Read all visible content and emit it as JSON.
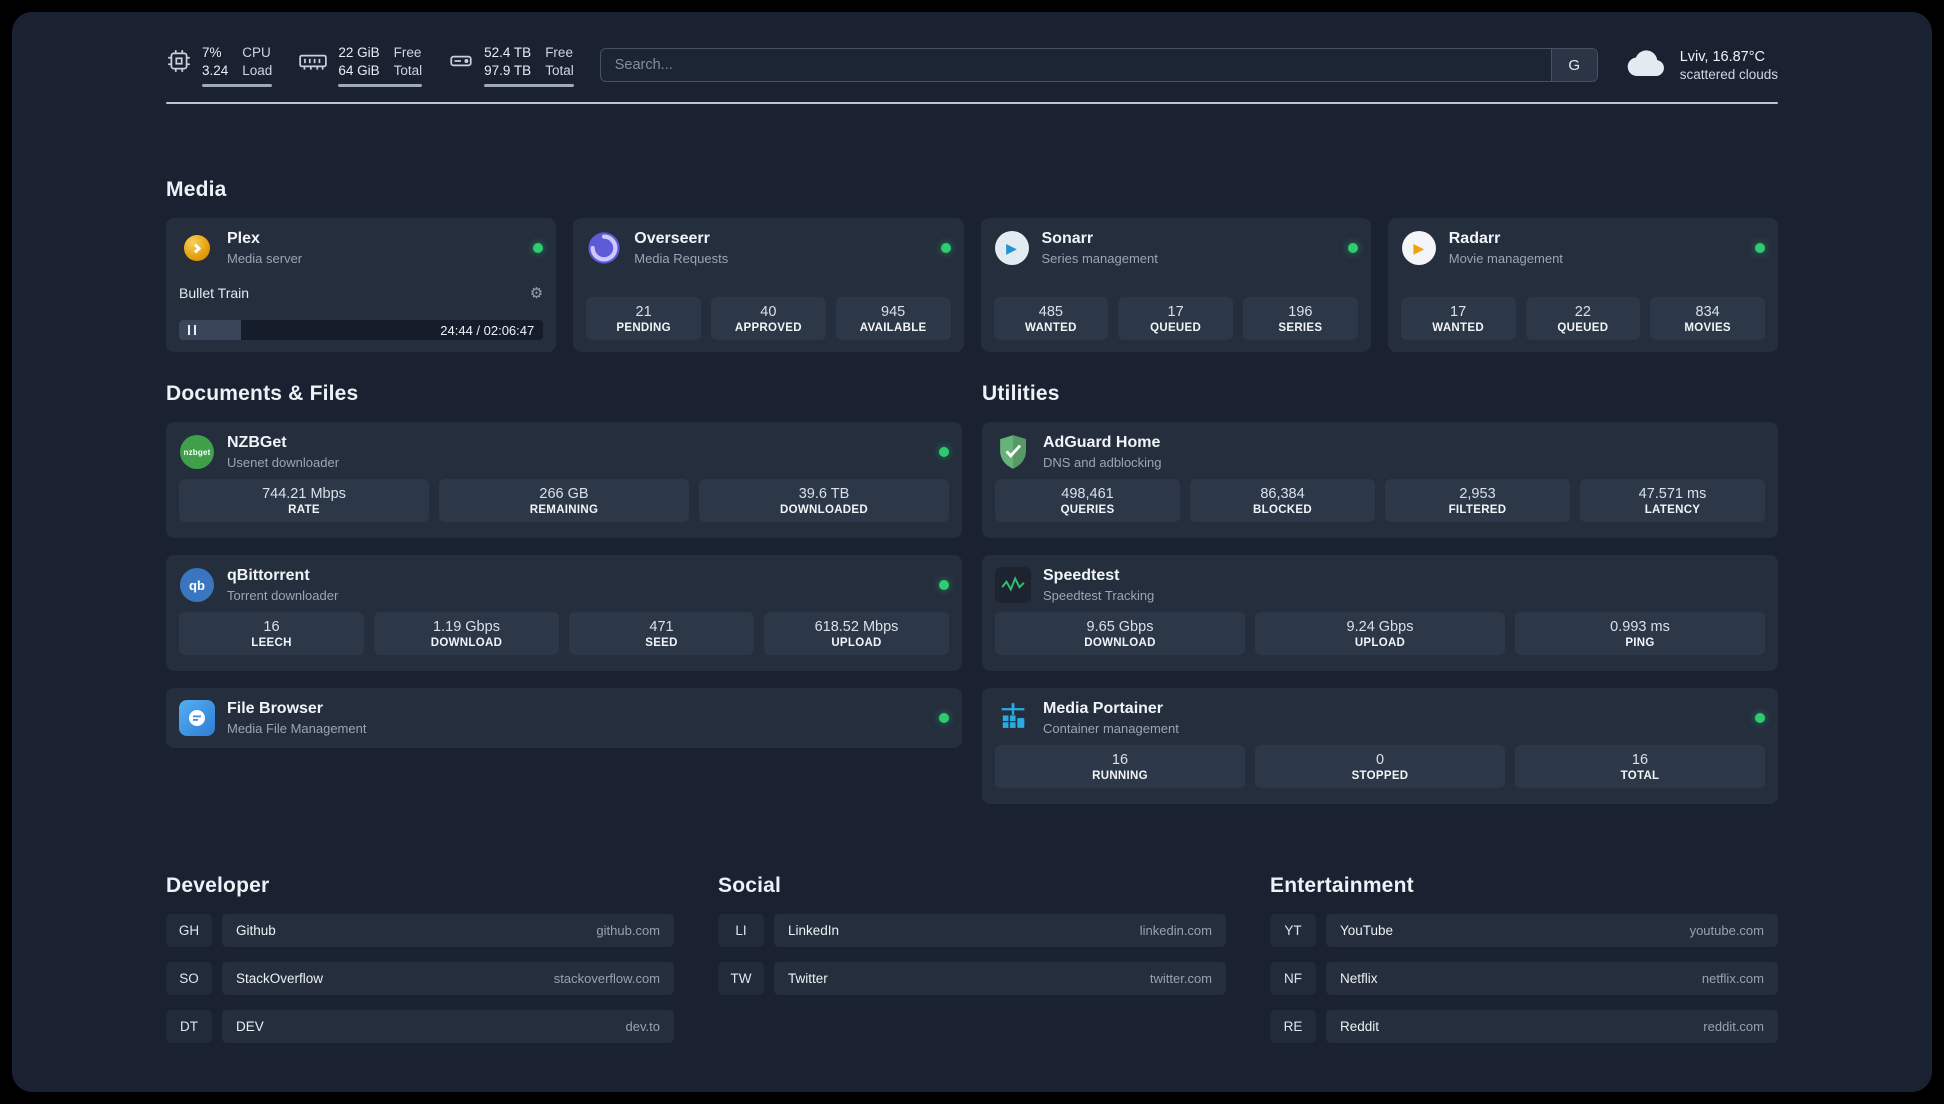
{
  "topbar": {
    "cpu": {
      "percent": "7%",
      "load": "3.24",
      "label_top": "CPU",
      "label_bottom": "Load"
    },
    "ram": {
      "free": "22 GiB",
      "total": "64 GiB",
      "label_top": "Free",
      "label_bottom": "Total"
    },
    "disk": {
      "free": "52.4 TB",
      "total": "97.9 TB",
      "label_top": "Free",
      "label_bottom": "Total"
    },
    "search": {
      "placeholder": "Search...",
      "provider_label": "G"
    },
    "weather": {
      "location": "Lviv, 16.87°C",
      "condition": "scattered clouds"
    }
  },
  "icons": {
    "gear": "⚙",
    "play": "▶",
    "qb_label": "qb",
    "nzbget_label": "nzbget"
  },
  "media": {
    "title": "Media",
    "plex": {
      "name": "Plex",
      "desc": "Media server",
      "now_playing": "Bullet Train",
      "time": "24:44 / 02:06:47",
      "progress_width": "17%"
    },
    "overseerr": {
      "name": "Overseerr",
      "desc": "Media Requests",
      "stats": [
        {
          "value": "21",
          "label": "PENDING"
        },
        {
          "value": "40",
          "label": "APPROVED"
        },
        {
          "value": "945",
          "label": "AVAILABLE"
        }
      ]
    },
    "sonarr": {
      "name": "Sonarr",
      "desc": "Series management",
      "stats": [
        {
          "value": "485",
          "label": "WANTED"
        },
        {
          "value": "17",
          "label": "QUEUED"
        },
        {
          "value": "196",
          "label": "SERIES"
        }
      ]
    },
    "radarr": {
      "name": "Radarr",
      "desc": "Movie management",
      "stats": [
        {
          "value": "17",
          "label": "WANTED"
        },
        {
          "value": "22",
          "label": "QUEUED"
        },
        {
          "value": "834",
          "label": "MOVIES"
        }
      ]
    }
  },
  "documents": {
    "title": "Documents & Files",
    "nzbget": {
      "name": "NZBGet",
      "desc": "Usenet downloader",
      "stats": [
        {
          "value": "744.21 Mbps",
          "label": "RATE"
        },
        {
          "value": "266 GB",
          "label": "REMAINING"
        },
        {
          "value": "39.6 TB",
          "label": "DOWNLOADED"
        }
      ]
    },
    "qbittorrent": {
      "name": "qBittorrent",
      "desc": "Torrent downloader",
      "stats": [
        {
          "value": "16",
          "label": "LEECH"
        },
        {
          "value": "1.19 Gbps",
          "label": "DOWNLOAD"
        },
        {
          "value": "471",
          "label": "SEED"
        },
        {
          "value": "618.52 Mbps",
          "label": "UPLOAD"
        }
      ]
    },
    "filebrowser": {
      "name": "File Browser",
      "desc": "Media File Management"
    }
  },
  "utilities": {
    "title": "Utilities",
    "adguard": {
      "name": "AdGuard Home",
      "desc": "DNS and adblocking",
      "stats": [
        {
          "value": "498,461",
          "label": "QUERIES"
        },
        {
          "value": "86,384",
          "label": "BLOCKED"
        },
        {
          "value": "2,953",
          "label": "FILTERED"
        },
        {
          "value": "47.571 ms",
          "label": "LATENCY"
        }
      ]
    },
    "speedtest": {
      "name": "Speedtest",
      "desc": "Speedtest Tracking",
      "stats": [
        {
          "value": "9.65 Gbps",
          "label": "DOWNLOAD"
        },
        {
          "value": "9.24 Gbps",
          "label": "UPLOAD"
        },
        {
          "value": "0.993 ms",
          "label": "PING"
        }
      ]
    },
    "portainer": {
      "name": "Media Portainer",
      "desc": "Container management",
      "stats": [
        {
          "value": "16",
          "label": "RUNNING"
        },
        {
          "value": "0",
          "label": "STOPPED"
        },
        {
          "value": "16",
          "label": "TOTAL"
        }
      ]
    }
  },
  "bookmarks": {
    "developer": {
      "title": "Developer",
      "items": [
        {
          "abbr": "GH",
          "name": "Github",
          "url": "github.com"
        },
        {
          "abbr": "SO",
          "name": "StackOverflow",
          "url": "stackoverflow.com"
        },
        {
          "abbr": "DT",
          "name": "DEV",
          "url": "dev.to"
        }
      ]
    },
    "social": {
      "title": "Social",
      "items": [
        {
          "abbr": "LI",
          "name": "LinkedIn",
          "url": "linkedin.com"
        },
        {
          "abbr": "TW",
          "name": "Twitter",
          "url": "twitter.com"
        }
      ]
    },
    "entertainment": {
      "title": "Entertainment",
      "items": [
        {
          "abbr": "YT",
          "name": "YouTube",
          "url": "youtube.com"
        },
        {
          "abbr": "NF",
          "name": "Netflix",
          "url": "netflix.com"
        },
        {
          "abbr": "RE",
          "name": "Reddit",
          "url": "reddit.com"
        }
      ]
    }
  }
}
